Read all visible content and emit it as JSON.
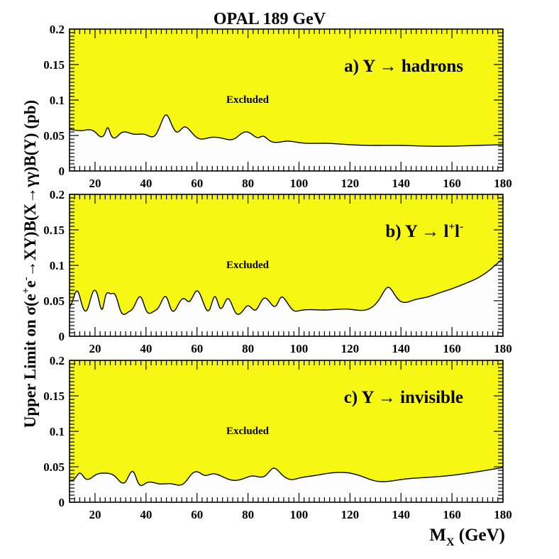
{
  "colors": {
    "excluded": "#f7f714",
    "allowed": "#fdfdfd",
    "line": "#000000"
  },
  "chart_data": {
    "title": "OPAL 189 GeV",
    "ylabel_parts": [
      "Upper Limit on σ(e",
      "+",
      "e",
      "-",
      "→XY)B(X→γγ)B(Y) (pb)"
    ],
    "xlabel_main": "M",
    "xlabel_sub": "X",
    "xlabel_unit": "(GeV)",
    "xlim": [
      10,
      180
    ],
    "ylim": [
      0,
      0.2
    ],
    "x_ticks": [
      20,
      40,
      60,
      80,
      100,
      120,
      140,
      160,
      180
    ],
    "y_ticks": [
      0,
      0.05,
      0.1,
      0.15,
      0.2
    ],
    "y_tick_labels": [
      "0",
      "0.05",
      "0.1",
      "0.15",
      "0.2"
    ],
    "excluded_label": "Excluded",
    "panels": [
      {
        "type": "area",
        "title_prefix": "a) Y",
        "title_arrow": "→",
        "title_rest": "hadrons",
        "title_sup1": "",
        "title_mid": "",
        "title_sup2": "",
        "x": [
          10,
          15,
          20,
          24,
          25,
          26,
          30,
          35,
          40,
          44,
          46,
          48,
          50,
          52,
          55,
          57,
          60,
          65,
          70,
          75,
          78,
          81,
          84,
          86,
          88,
          95,
          100,
          110,
          120,
          130,
          140,
          150,
          160,
          170,
          180
        ],
        "y": [
          0.059,
          0.057,
          0.055,
          0.054,
          0.061,
          0.053,
          0.053,
          0.052,
          0.051,
          0.052,
          0.068,
          0.079,
          0.066,
          0.055,
          0.062,
          0.058,
          0.047,
          0.047,
          0.046,
          0.046,
          0.054,
          0.053,
          0.047,
          0.049,
          0.044,
          0.042,
          0.04,
          0.039,
          0.037,
          0.036,
          0.036,
          0.035,
          0.035,
          0.036,
          0.037
        ]
      },
      {
        "type": "area",
        "title_prefix": "b) Y",
        "title_arrow": "→",
        "title_rest": "l",
        "title_sup1": "+",
        "title_mid": "l",
        "title_sup2": "-",
        "x": [
          10,
          11,
          13,
          15,
          17,
          19,
          21,
          23,
          24,
          26,
          28,
          30,
          33,
          35,
          38,
          40,
          43,
          45,
          48,
          50,
          53,
          55,
          57,
          60,
          62,
          65,
          67,
          69,
          72,
          75,
          78,
          80,
          83,
          86,
          89,
          91,
          93,
          94,
          96,
          98,
          100,
          110,
          120,
          129,
          132,
          135,
          138,
          140,
          145,
          150,
          155,
          160,
          165,
          170,
          175,
          180
        ],
        "y": [
          0.041,
          0.048,
          0.064,
          0.043,
          0.038,
          0.061,
          0.058,
          0.039,
          0.055,
          0.06,
          0.058,
          0.036,
          0.034,
          0.04,
          0.055,
          0.037,
          0.035,
          0.041,
          0.055,
          0.037,
          0.047,
          0.053,
          0.049,
          0.064,
          0.052,
          0.038,
          0.056,
          0.04,
          0.053,
          0.034,
          0.036,
          0.043,
          0.037,
          0.053,
          0.046,
          0.043,
          0.055,
          0.054,
          0.044,
          0.036,
          0.036,
          0.037,
          0.038,
          0.042,
          0.055,
          0.069,
          0.056,
          0.049,
          0.051,
          0.055,
          0.061,
          0.067,
          0.074,
          0.082,
          0.094,
          0.11
        ]
      },
      {
        "type": "area",
        "title_prefix": "c) Y",
        "title_arrow": "→",
        "title_rest": "invisible",
        "title_sup1": "",
        "title_mid": "",
        "title_sup2": "",
        "x": [
          10,
          12,
          14,
          16,
          20,
          24,
          28,
          32,
          35,
          37,
          40,
          45,
          50,
          55,
          58,
          60,
          63,
          66,
          70,
          74,
          78,
          82,
          87,
          90,
          93,
          97,
          100,
          105,
          110,
          115,
          120,
          125,
          130,
          140,
          150,
          160,
          170,
          180
        ],
        "y": [
          0.031,
          0.033,
          0.041,
          0.034,
          0.038,
          0.041,
          0.036,
          0.029,
          0.043,
          0.027,
          0.027,
          0.026,
          0.026,
          0.027,
          0.04,
          0.043,
          0.038,
          0.04,
          0.036,
          0.031,
          0.033,
          0.037,
          0.038,
          0.048,
          0.04,
          0.032,
          0.034,
          0.037,
          0.04,
          0.042,
          0.041,
          0.036,
          0.03,
          0.032,
          0.035,
          0.038,
          0.043,
          0.049
        ]
      }
    ]
  }
}
